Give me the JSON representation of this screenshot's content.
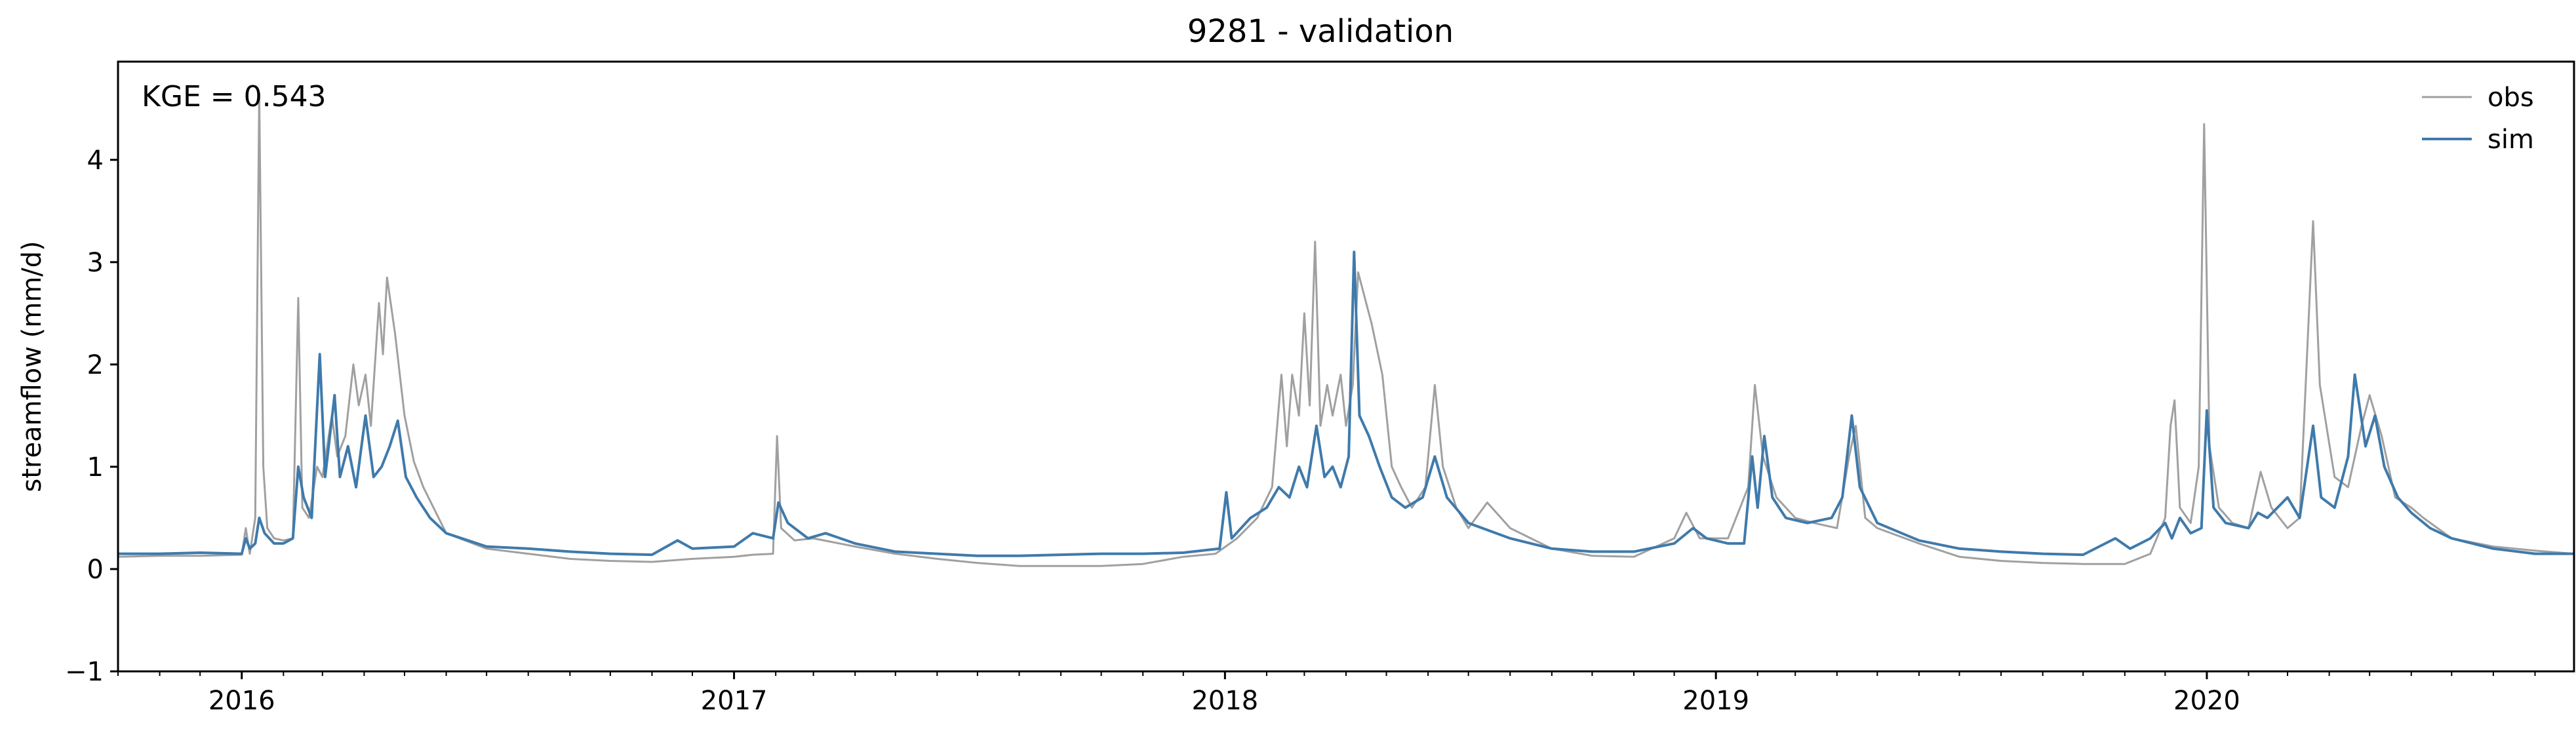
{
  "chart_data": {
    "type": "line",
    "title": "9281 - validation",
    "xlabel": "",
    "ylabel": "streamflow (mm/d)",
    "annotation": "KGE = 0.543",
    "x_start": "2015-10-01",
    "x_end": "2020-09-30",
    "ylim": [
      -1,
      4.96
    ],
    "y_ticks": [
      -1,
      0,
      1,
      2,
      3,
      4
    ],
    "x_ticks": [
      {
        "label": "2016",
        "date": "2016-01-01"
      },
      {
        "label": "2017",
        "date": "2017-01-01"
      },
      {
        "label": "2018",
        "date": "2018-01-01"
      },
      {
        "label": "2019",
        "date": "2019-01-01"
      },
      {
        "label": "2020",
        "date": "2020-01-01"
      }
    ],
    "legend_position": "top-right",
    "grid": false,
    "series": [
      {
        "name": "obs",
        "color": "#a0a0a0",
        "points": [
          [
            "2015-10-01",
            0.12
          ],
          [
            "2015-11-01",
            0.13
          ],
          [
            "2015-12-01",
            0.13
          ],
          [
            "2016-01-01",
            0.14
          ],
          [
            "2016-01-04",
            0.4
          ],
          [
            "2016-01-07",
            0.15
          ],
          [
            "2016-01-11",
            0.5
          ],
          [
            "2016-01-14",
            4.65
          ],
          [
            "2016-01-17",
            1.0
          ],
          [
            "2016-01-20",
            0.4
          ],
          [
            "2016-01-25",
            0.3
          ],
          [
            "2016-02-01",
            0.28
          ],
          [
            "2016-02-08",
            0.3
          ],
          [
            "2016-02-12",
            2.65
          ],
          [
            "2016-02-15",
            0.6
          ],
          [
            "2016-02-20",
            0.5
          ],
          [
            "2016-02-26",
            1.0
          ],
          [
            "2016-03-01",
            0.9
          ],
          [
            "2016-03-08",
            1.5
          ],
          [
            "2016-03-12",
            1.1
          ],
          [
            "2016-03-18",
            1.3
          ],
          [
            "2016-03-24",
            2.0
          ],
          [
            "2016-03-28",
            1.6
          ],
          [
            "2016-04-02",
            1.9
          ],
          [
            "2016-04-06",
            1.4
          ],
          [
            "2016-04-12",
            2.6
          ],
          [
            "2016-04-15",
            2.1
          ],
          [
            "2016-04-18",
            2.85
          ],
          [
            "2016-04-24",
            2.3
          ],
          [
            "2016-05-01",
            1.5
          ],
          [
            "2016-05-08",
            1.05
          ],
          [
            "2016-05-15",
            0.8
          ],
          [
            "2016-06-01",
            0.35
          ],
          [
            "2016-07-01",
            0.2
          ],
          [
            "2016-08-01",
            0.15
          ],
          [
            "2016-09-01",
            0.1
          ],
          [
            "2016-10-01",
            0.08
          ],
          [
            "2016-11-01",
            0.07
          ],
          [
            "2016-12-01",
            0.1
          ],
          [
            "2017-01-01",
            0.12
          ],
          [
            "2017-01-15",
            0.14
          ],
          [
            "2017-01-30",
            0.15
          ],
          [
            "2017-02-02",
            1.3
          ],
          [
            "2017-02-05",
            0.4
          ],
          [
            "2017-02-15",
            0.28
          ],
          [
            "2017-03-01",
            0.3
          ],
          [
            "2017-04-01",
            0.22
          ],
          [
            "2017-05-01",
            0.15
          ],
          [
            "2017-06-01",
            0.1
          ],
          [
            "2017-07-01",
            0.06
          ],
          [
            "2017-08-01",
            0.03
          ],
          [
            "2017-09-01",
            0.03
          ],
          [
            "2017-10-01",
            0.03
          ],
          [
            "2017-11-01",
            0.05
          ],
          [
            "2017-12-01",
            0.12
          ],
          [
            "2017-12-25",
            0.15
          ],
          [
            "2018-01-10",
            0.3
          ],
          [
            "2018-01-25",
            0.5
          ],
          [
            "2018-02-05",
            0.8
          ],
          [
            "2018-02-12",
            1.9
          ],
          [
            "2018-02-16",
            1.2
          ],
          [
            "2018-02-20",
            1.9
          ],
          [
            "2018-02-25",
            1.5
          ],
          [
            "2018-03-01",
            2.5
          ],
          [
            "2018-03-05",
            1.6
          ],
          [
            "2018-03-09",
            3.2
          ],
          [
            "2018-03-13",
            1.4
          ],
          [
            "2018-03-18",
            1.8
          ],
          [
            "2018-03-22",
            1.5
          ],
          [
            "2018-03-28",
            1.9
          ],
          [
            "2018-04-01",
            1.4
          ],
          [
            "2018-04-06",
            1.8
          ],
          [
            "2018-04-10",
            2.9
          ],
          [
            "2018-04-14",
            2.7
          ],
          [
            "2018-04-20",
            2.4
          ],
          [
            "2018-04-28",
            1.9
          ],
          [
            "2018-05-05",
            1.0
          ],
          [
            "2018-05-12",
            0.8
          ],
          [
            "2018-05-20",
            0.6
          ],
          [
            "2018-05-30",
            0.8
          ],
          [
            "2018-06-06",
            1.8
          ],
          [
            "2018-06-12",
            1.0
          ],
          [
            "2018-06-22",
            0.6
          ],
          [
            "2018-07-01",
            0.4
          ],
          [
            "2018-07-15",
            0.65
          ],
          [
            "2018-08-01",
            0.4
          ],
          [
            "2018-09-01",
            0.2
          ],
          [
            "2018-10-01",
            0.13
          ],
          [
            "2018-11-01",
            0.12
          ],
          [
            "2018-12-01",
            0.3
          ],
          [
            "2018-12-10",
            0.55
          ],
          [
            "2018-12-20",
            0.3
          ],
          [
            "2019-01-10",
            0.3
          ],
          [
            "2019-01-25",
            0.8
          ],
          [
            "2019-01-30",
            1.8
          ],
          [
            "2019-02-05",
            1.1
          ],
          [
            "2019-02-15",
            0.7
          ],
          [
            "2019-03-01",
            0.5
          ],
          [
            "2019-03-15",
            0.45
          ],
          [
            "2019-04-01",
            0.4
          ],
          [
            "2019-04-10",
            1.1
          ],
          [
            "2019-04-15",
            1.4
          ],
          [
            "2019-04-22",
            0.5
          ],
          [
            "2019-05-01",
            0.4
          ],
          [
            "2019-06-01",
            0.25
          ],
          [
            "2019-07-01",
            0.12
          ],
          [
            "2019-08-01",
            0.08
          ],
          [
            "2019-09-01",
            0.06
          ],
          [
            "2019-10-01",
            0.05
          ],
          [
            "2019-11-01",
            0.05
          ],
          [
            "2019-11-20",
            0.15
          ],
          [
            "2019-12-01",
            0.5
          ],
          [
            "2019-12-05",
            1.4
          ],
          [
            "2019-12-08",
            1.65
          ],
          [
            "2019-12-12",
            0.6
          ],
          [
            "2019-12-20",
            0.45
          ],
          [
            "2019-12-26",
            1.0
          ],
          [
            "2019-12-30",
            4.35
          ],
          [
            "2020-01-03",
            1.2
          ],
          [
            "2020-01-10",
            0.6
          ],
          [
            "2020-01-20",
            0.45
          ],
          [
            "2020-02-01",
            0.4
          ],
          [
            "2020-02-10",
            0.95
          ],
          [
            "2020-02-18",
            0.6
          ],
          [
            "2020-03-01",
            0.4
          ],
          [
            "2020-03-10",
            0.5
          ],
          [
            "2020-03-20",
            3.4
          ],
          [
            "2020-03-25",
            1.8
          ],
          [
            "2020-04-05",
            0.9
          ],
          [
            "2020-04-15",
            0.8
          ],
          [
            "2020-04-25",
            1.4
          ],
          [
            "2020-05-01",
            1.7
          ],
          [
            "2020-05-10",
            1.3
          ],
          [
            "2020-05-20",
            0.7
          ],
          [
            "2020-06-01",
            0.6
          ],
          [
            "2020-06-10",
            0.5
          ],
          [
            "2020-07-01",
            0.3
          ],
          [
            "2020-08-01",
            0.22
          ],
          [
            "2020-09-01",
            0.18
          ],
          [
            "2020-09-30",
            0.15
          ]
        ]
      },
      {
        "name": "sim",
        "color": "#3f7aab",
        "points": [
          [
            "2015-10-01",
            0.15
          ],
          [
            "2015-11-01",
            0.15
          ],
          [
            "2015-12-01",
            0.16
          ],
          [
            "2016-01-01",
            0.15
          ],
          [
            "2016-01-04",
            0.3
          ],
          [
            "2016-01-07",
            0.2
          ],
          [
            "2016-01-11",
            0.25
          ],
          [
            "2016-01-14",
            0.5
          ],
          [
            "2016-01-18",
            0.35
          ],
          [
            "2016-01-25",
            0.25
          ],
          [
            "2016-02-01",
            0.25
          ],
          [
            "2016-02-08",
            0.3
          ],
          [
            "2016-02-12",
            1.0
          ],
          [
            "2016-02-16",
            0.7
          ],
          [
            "2016-02-22",
            0.5
          ],
          [
            "2016-02-28",
            2.1
          ],
          [
            "2016-03-03",
            0.9
          ],
          [
            "2016-03-10",
            1.7
          ],
          [
            "2016-03-14",
            0.9
          ],
          [
            "2016-03-20",
            1.2
          ],
          [
            "2016-03-26",
            0.8
          ],
          [
            "2016-04-02",
            1.5
          ],
          [
            "2016-04-08",
            0.9
          ],
          [
            "2016-04-14",
            1.0
          ],
          [
            "2016-04-20",
            1.2
          ],
          [
            "2016-04-26",
            1.45
          ],
          [
            "2016-05-02",
            0.9
          ],
          [
            "2016-05-10",
            0.7
          ],
          [
            "2016-05-20",
            0.5
          ],
          [
            "2016-06-01",
            0.35
          ],
          [
            "2016-07-01",
            0.22
          ],
          [
            "2016-08-01",
            0.2
          ],
          [
            "2016-09-01",
            0.17
          ],
          [
            "2016-10-01",
            0.15
          ],
          [
            "2016-11-01",
            0.14
          ],
          [
            "2016-11-20",
            0.28
          ],
          [
            "2016-12-01",
            0.2
          ],
          [
            "2017-01-01",
            0.22
          ],
          [
            "2017-01-15",
            0.35
          ],
          [
            "2017-01-30",
            0.3
          ],
          [
            "2017-02-03",
            0.65
          ],
          [
            "2017-02-10",
            0.45
          ],
          [
            "2017-02-25",
            0.3
          ],
          [
            "2017-03-10",
            0.35
          ],
          [
            "2017-04-01",
            0.25
          ],
          [
            "2017-05-01",
            0.17
          ],
          [
            "2017-06-01",
            0.15
          ],
          [
            "2017-07-01",
            0.13
          ],
          [
            "2017-08-01",
            0.13
          ],
          [
            "2017-09-01",
            0.14
          ],
          [
            "2017-10-01",
            0.15
          ],
          [
            "2017-11-01",
            0.15
          ],
          [
            "2017-12-01",
            0.16
          ],
          [
            "2017-12-28",
            0.2
          ],
          [
            "2018-01-02",
            0.75
          ],
          [
            "2018-01-06",
            0.3
          ],
          [
            "2018-01-20",
            0.5
          ],
          [
            "2018-02-01",
            0.6
          ],
          [
            "2018-02-10",
            0.8
          ],
          [
            "2018-02-18",
            0.7
          ],
          [
            "2018-02-25",
            1.0
          ],
          [
            "2018-03-03",
            0.8
          ],
          [
            "2018-03-10",
            1.4
          ],
          [
            "2018-03-16",
            0.9
          ],
          [
            "2018-03-22",
            1.0
          ],
          [
            "2018-03-28",
            0.8
          ],
          [
            "2018-04-03",
            1.1
          ],
          [
            "2018-04-07",
            3.1
          ],
          [
            "2018-04-11",
            1.5
          ],
          [
            "2018-04-18",
            1.3
          ],
          [
            "2018-04-26",
            1.0
          ],
          [
            "2018-05-05",
            0.7
          ],
          [
            "2018-05-15",
            0.6
          ],
          [
            "2018-05-28",
            0.7
          ],
          [
            "2018-06-06",
            1.1
          ],
          [
            "2018-06-15",
            0.7
          ],
          [
            "2018-07-01",
            0.45
          ],
          [
            "2018-08-01",
            0.3
          ],
          [
            "2018-09-01",
            0.2
          ],
          [
            "2018-10-01",
            0.17
          ],
          [
            "2018-11-01",
            0.17
          ],
          [
            "2018-12-01",
            0.25
          ],
          [
            "2018-12-15",
            0.4
          ],
          [
            "2018-12-25",
            0.3
          ],
          [
            "2019-01-10",
            0.25
          ],
          [
            "2019-01-22",
            0.25
          ],
          [
            "2019-01-28",
            1.1
          ],
          [
            "2019-02-01",
            0.6
          ],
          [
            "2019-02-06",
            1.3
          ],
          [
            "2019-02-12",
            0.7
          ],
          [
            "2019-02-22",
            0.5
          ],
          [
            "2019-03-10",
            0.45
          ],
          [
            "2019-03-28",
            0.5
          ],
          [
            "2019-04-05",
            0.7
          ],
          [
            "2019-04-12",
            1.5
          ],
          [
            "2019-04-18",
            0.8
          ],
          [
            "2019-05-01",
            0.45
          ],
          [
            "2019-06-01",
            0.28
          ],
          [
            "2019-07-01",
            0.2
          ],
          [
            "2019-08-01",
            0.17
          ],
          [
            "2019-09-01",
            0.15
          ],
          [
            "2019-10-01",
            0.14
          ],
          [
            "2019-10-25",
            0.3
          ],
          [
            "2019-11-05",
            0.2
          ],
          [
            "2019-11-20",
            0.3
          ],
          [
            "2019-12-01",
            0.45
          ],
          [
            "2019-12-06",
            0.3
          ],
          [
            "2019-12-12",
            0.5
          ],
          [
            "2019-12-20",
            0.35
          ],
          [
            "2019-12-28",
            0.4
          ],
          [
            "2020-01-01",
            1.55
          ],
          [
            "2020-01-06",
            0.6
          ],
          [
            "2020-01-15",
            0.45
          ],
          [
            "2020-02-01",
            0.4
          ],
          [
            "2020-02-08",
            0.55
          ],
          [
            "2020-02-15",
            0.5
          ],
          [
            "2020-03-01",
            0.7
          ],
          [
            "2020-03-10",
            0.5
          ],
          [
            "2020-03-20",
            1.4
          ],
          [
            "2020-03-26",
            0.7
          ],
          [
            "2020-04-05",
            0.6
          ],
          [
            "2020-04-15",
            1.1
          ],
          [
            "2020-04-20",
            1.9
          ],
          [
            "2020-04-28",
            1.2
          ],
          [
            "2020-05-05",
            1.5
          ],
          [
            "2020-05-12",
            1.0
          ],
          [
            "2020-05-22",
            0.7
          ],
          [
            "2020-06-01",
            0.55
          ],
          [
            "2020-06-15",
            0.4
          ],
          [
            "2020-07-01",
            0.3
          ],
          [
            "2020-08-01",
            0.2
          ],
          [
            "2020-09-01",
            0.15
          ],
          [
            "2020-09-30",
            0.15
          ]
        ]
      }
    ]
  }
}
